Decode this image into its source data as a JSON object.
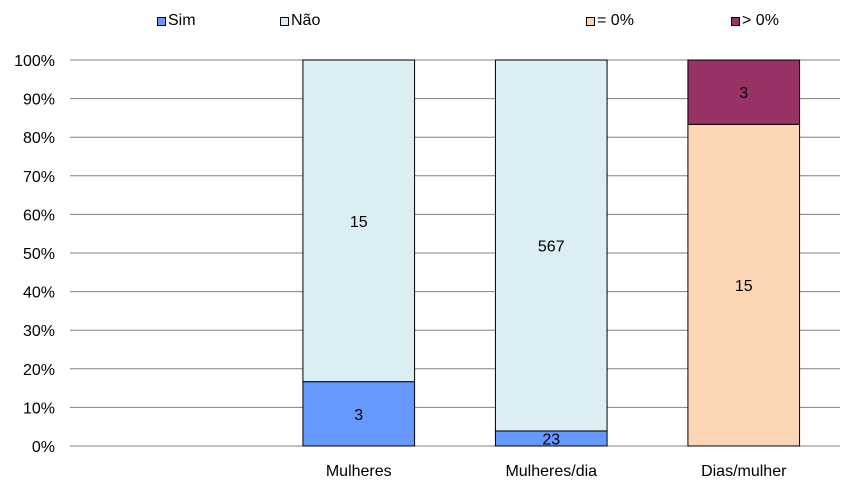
{
  "chart_data": {
    "type": "bar",
    "stacked": "percent",
    "categories": [
      "",
      "Mulheres",
      "Mulheres/dia",
      "Dias/mulher"
    ],
    "series": [
      {
        "name": "Sim",
        "color": "#6699ff",
        "values": [
          null,
          3,
          23,
          null
        ],
        "labels": [
          "",
          "3",
          "23",
          ""
        ]
      },
      {
        "name": "Não",
        "color": "#daeef3",
        "values": [
          null,
          15,
          567,
          null
        ],
        "labels": [
          "",
          "15",
          "567",
          ""
        ]
      },
      {
        "name": "= 0%",
        "color": "#fcd5b4",
        "values": [
          null,
          null,
          null,
          15
        ],
        "labels": [
          "",
          "",
          "",
          "15"
        ]
      },
      {
        "name": "> 0%",
        "color": "#993366",
        "values": [
          null,
          null,
          null,
          3
        ],
        "labels": [
          "",
          "",
          "",
          "3"
        ]
      }
    ],
    "yticks": [
      "0%",
      "10%",
      "20%",
      "30%",
      "40%",
      "50%",
      "60%",
      "70%",
      "80%",
      "90%",
      "100%"
    ],
    "ylim": [
      0,
      100
    ],
    "grid": true,
    "legend": "top"
  }
}
